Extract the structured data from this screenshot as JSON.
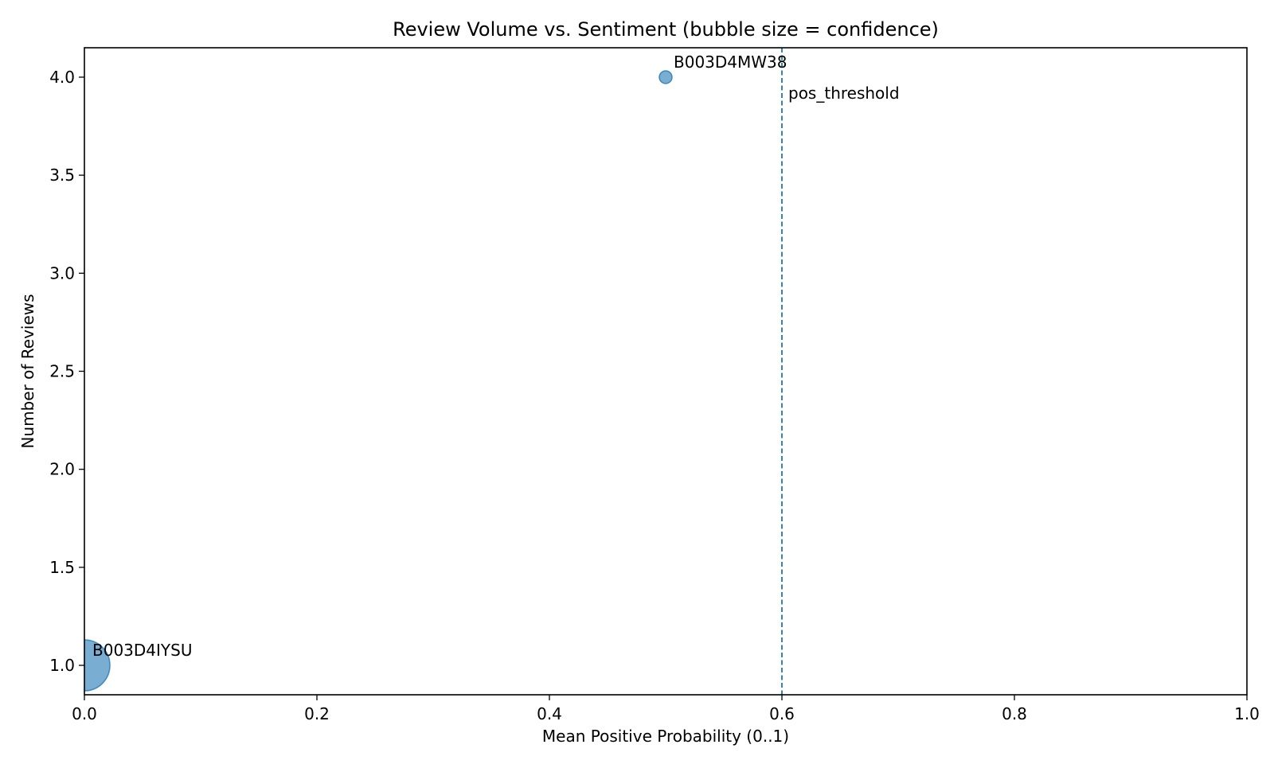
{
  "chart_data": {
    "type": "scatter",
    "title": "Review Volume vs. Sentiment (bubble size = confidence)",
    "xlabel": "Mean Positive Probability (0..1)",
    "ylabel": "Number of Reviews",
    "xlim": [
      0.0,
      1.0
    ],
    "ylim": [
      0.85,
      4.15
    ],
    "xticks": [
      0.0,
      0.2,
      0.4,
      0.6,
      0.8,
      1.0
    ],
    "xtick_labels": [
      "0.0",
      "0.2",
      "0.4",
      "0.6",
      "0.8",
      "1.0"
    ],
    "yticks": [
      1.0,
      1.5,
      2.0,
      2.5,
      3.0,
      3.5,
      4.0
    ],
    "ytick_labels": [
      "1.0",
      "1.5",
      "2.0",
      "2.5",
      "3.0",
      "3.5",
      "4.0"
    ],
    "grid": false,
    "legend": "none",
    "bubble_color": "#1f77b4",
    "bubble_alpha": 0.6,
    "points": [
      {
        "label": "B003D4MW38",
        "x": 0.5,
        "y": 4.0,
        "confidence": 0.0
      },
      {
        "label": "B003D4IYSU",
        "x": 0.0,
        "y": 1.0,
        "confidence": 1.0
      }
    ],
    "threshold": {
      "x": 0.6,
      "label": "pos_threshold",
      "color": "#1f77b4",
      "style": "dashed"
    }
  }
}
